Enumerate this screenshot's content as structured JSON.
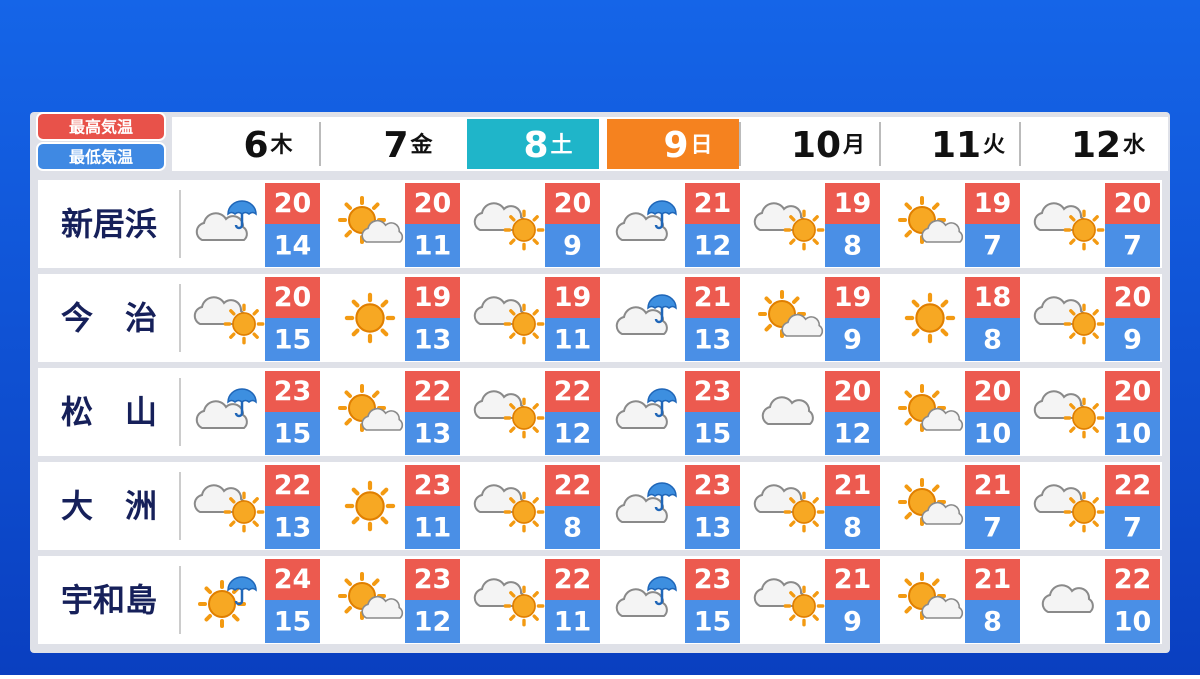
{
  "legend": {
    "high": "最高気温",
    "low": "最低気温"
  },
  "days": [
    {
      "date": "6",
      "weekday": "木"
    },
    {
      "date": "7",
      "weekday": "金"
    },
    {
      "date": "8",
      "weekday": "土",
      "color": "#1fb5c9"
    },
    {
      "date": "9",
      "weekday": "日",
      "color": "#f5821f"
    },
    {
      "date": "10",
      "weekday": "月"
    },
    {
      "date": "11",
      "weekday": "火"
    },
    {
      "date": "12",
      "weekday": "水"
    }
  ],
  "rows": [
    {
      "city": "新居浜",
      "high": [
        20,
        20,
        20,
        21,
        19,
        19,
        20
      ],
      "low": [
        14,
        11,
        9,
        12,
        8,
        7,
        7
      ]
    },
    {
      "city": "今　治",
      "high": [
        20,
        19,
        19,
        21,
        19,
        18,
        20
      ],
      "low": [
        15,
        13,
        11,
        13,
        9,
        8,
        9
      ]
    },
    {
      "city": "松　山",
      "high": [
        23,
        22,
        22,
        23,
        20,
        20,
        20
      ],
      "low": [
        15,
        13,
        12,
        15,
        12,
        10,
        10
      ]
    },
    {
      "city": "大　洲",
      "high": [
        22,
        23,
        22,
        23,
        21,
        21,
        22
      ],
      "low": [
        13,
        11,
        8,
        13,
        8,
        7,
        7
      ]
    },
    {
      "city": "宇和島",
      "high": [
        24,
        23,
        22,
        23,
        21,
        21,
        22
      ],
      "low": [
        15,
        12,
        11,
        15,
        9,
        8,
        10
      ]
    }
  ]
}
